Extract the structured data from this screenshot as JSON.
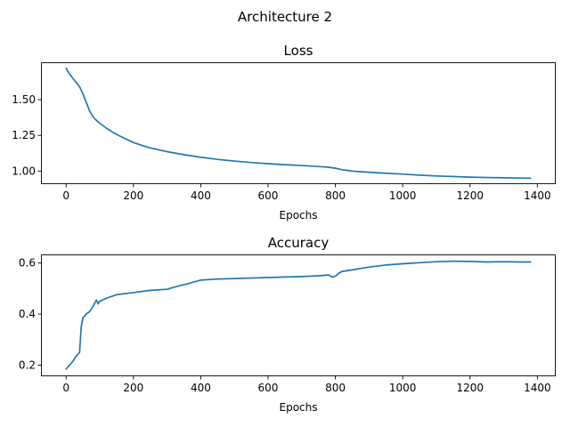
{
  "figure": {
    "suptitle": "Architecture 2"
  },
  "chart_data": [
    {
      "type": "line",
      "title": "Loss",
      "xlabel": "Epochs",
      "ylabel": "",
      "xlim": [
        -72,
        1452
      ],
      "ylim": [
        0.915,
        1.755
      ],
      "xticks": [
        0,
        200,
        400,
        600,
        800,
        1000,
        1200,
        1400
      ],
      "yticks": [
        1.0,
        1.25,
        1.5
      ],
      "ytick_labels": [
        "1.00",
        "1.25",
        "1.50"
      ],
      "grid": false,
      "color": "#1f77b4",
      "series": [
        {
          "x": [
            0,
            10,
            20,
            30,
            40,
            50,
            60,
            70,
            80,
            90,
            100,
            120,
            140,
            160,
            180,
            200,
            225,
            250,
            300,
            350,
            400,
            450,
            500,
            550,
            600,
            650,
            700,
            750,
            780,
            800,
            820,
            850,
            900,
            950,
            1000,
            1050,
            1100,
            1150,
            1200,
            1250,
            1300,
            1350,
            1380
          ],
          "y": [
            1.72,
            1.68,
            1.65,
            1.62,
            1.59,
            1.54,
            1.48,
            1.42,
            1.38,
            1.355,
            1.335,
            1.3,
            1.27,
            1.245,
            1.222,
            1.2,
            1.18,
            1.162,
            1.136,
            1.115,
            1.097,
            1.082,
            1.07,
            1.06,
            1.052,
            1.045,
            1.039,
            1.032,
            1.027,
            1.02,
            1.01,
            1.0,
            0.992,
            0.985,
            0.979,
            0.972,
            0.966,
            0.962,
            0.958,
            0.955,
            0.953,
            0.951,
            0.95
          ]
        }
      ]
    },
    {
      "type": "line",
      "title": "Accuracy",
      "xlabel": "Epochs",
      "ylabel": "",
      "xlim": [
        -72,
        1452
      ],
      "ylim": [
        0.16,
        0.63
      ],
      "xticks": [
        0,
        200,
        400,
        600,
        800,
        1000,
        1200,
        1400
      ],
      "yticks": [
        0.2,
        0.4,
        0.6
      ],
      "ytick_labels": [
        "0.2",
        "0.4",
        "0.6"
      ],
      "grid": false,
      "color": "#1f77b4",
      "series": [
        {
          "x": [
            0,
            10,
            20,
            30,
            40,
            45,
            50,
            60,
            70,
            80,
            90,
            95,
            100,
            120,
            150,
            200,
            250,
            300,
            320,
            340,
            360,
            400,
            450,
            500,
            550,
            600,
            650,
            700,
            750,
            780,
            790,
            800,
            810,
            820,
            850,
            900,
            950,
            1000,
            1050,
            1100,
            1150,
            1200,
            1250,
            1300,
            1350,
            1380
          ],
          "y": [
            0.185,
            0.2,
            0.215,
            0.235,
            0.25,
            0.35,
            0.385,
            0.4,
            0.41,
            0.43,
            0.455,
            0.44,
            0.45,
            0.462,
            0.476,
            0.484,
            0.493,
            0.497,
            0.505,
            0.512,
            0.518,
            0.533,
            0.537,
            0.539,
            0.541,
            0.543,
            0.545,
            0.547,
            0.55,
            0.553,
            0.545,
            0.548,
            0.56,
            0.567,
            0.573,
            0.584,
            0.592,
            0.597,
            0.601,
            0.605,
            0.607,
            0.606,
            0.604,
            0.605,
            0.604,
            0.604
          ]
        }
      ]
    }
  ]
}
